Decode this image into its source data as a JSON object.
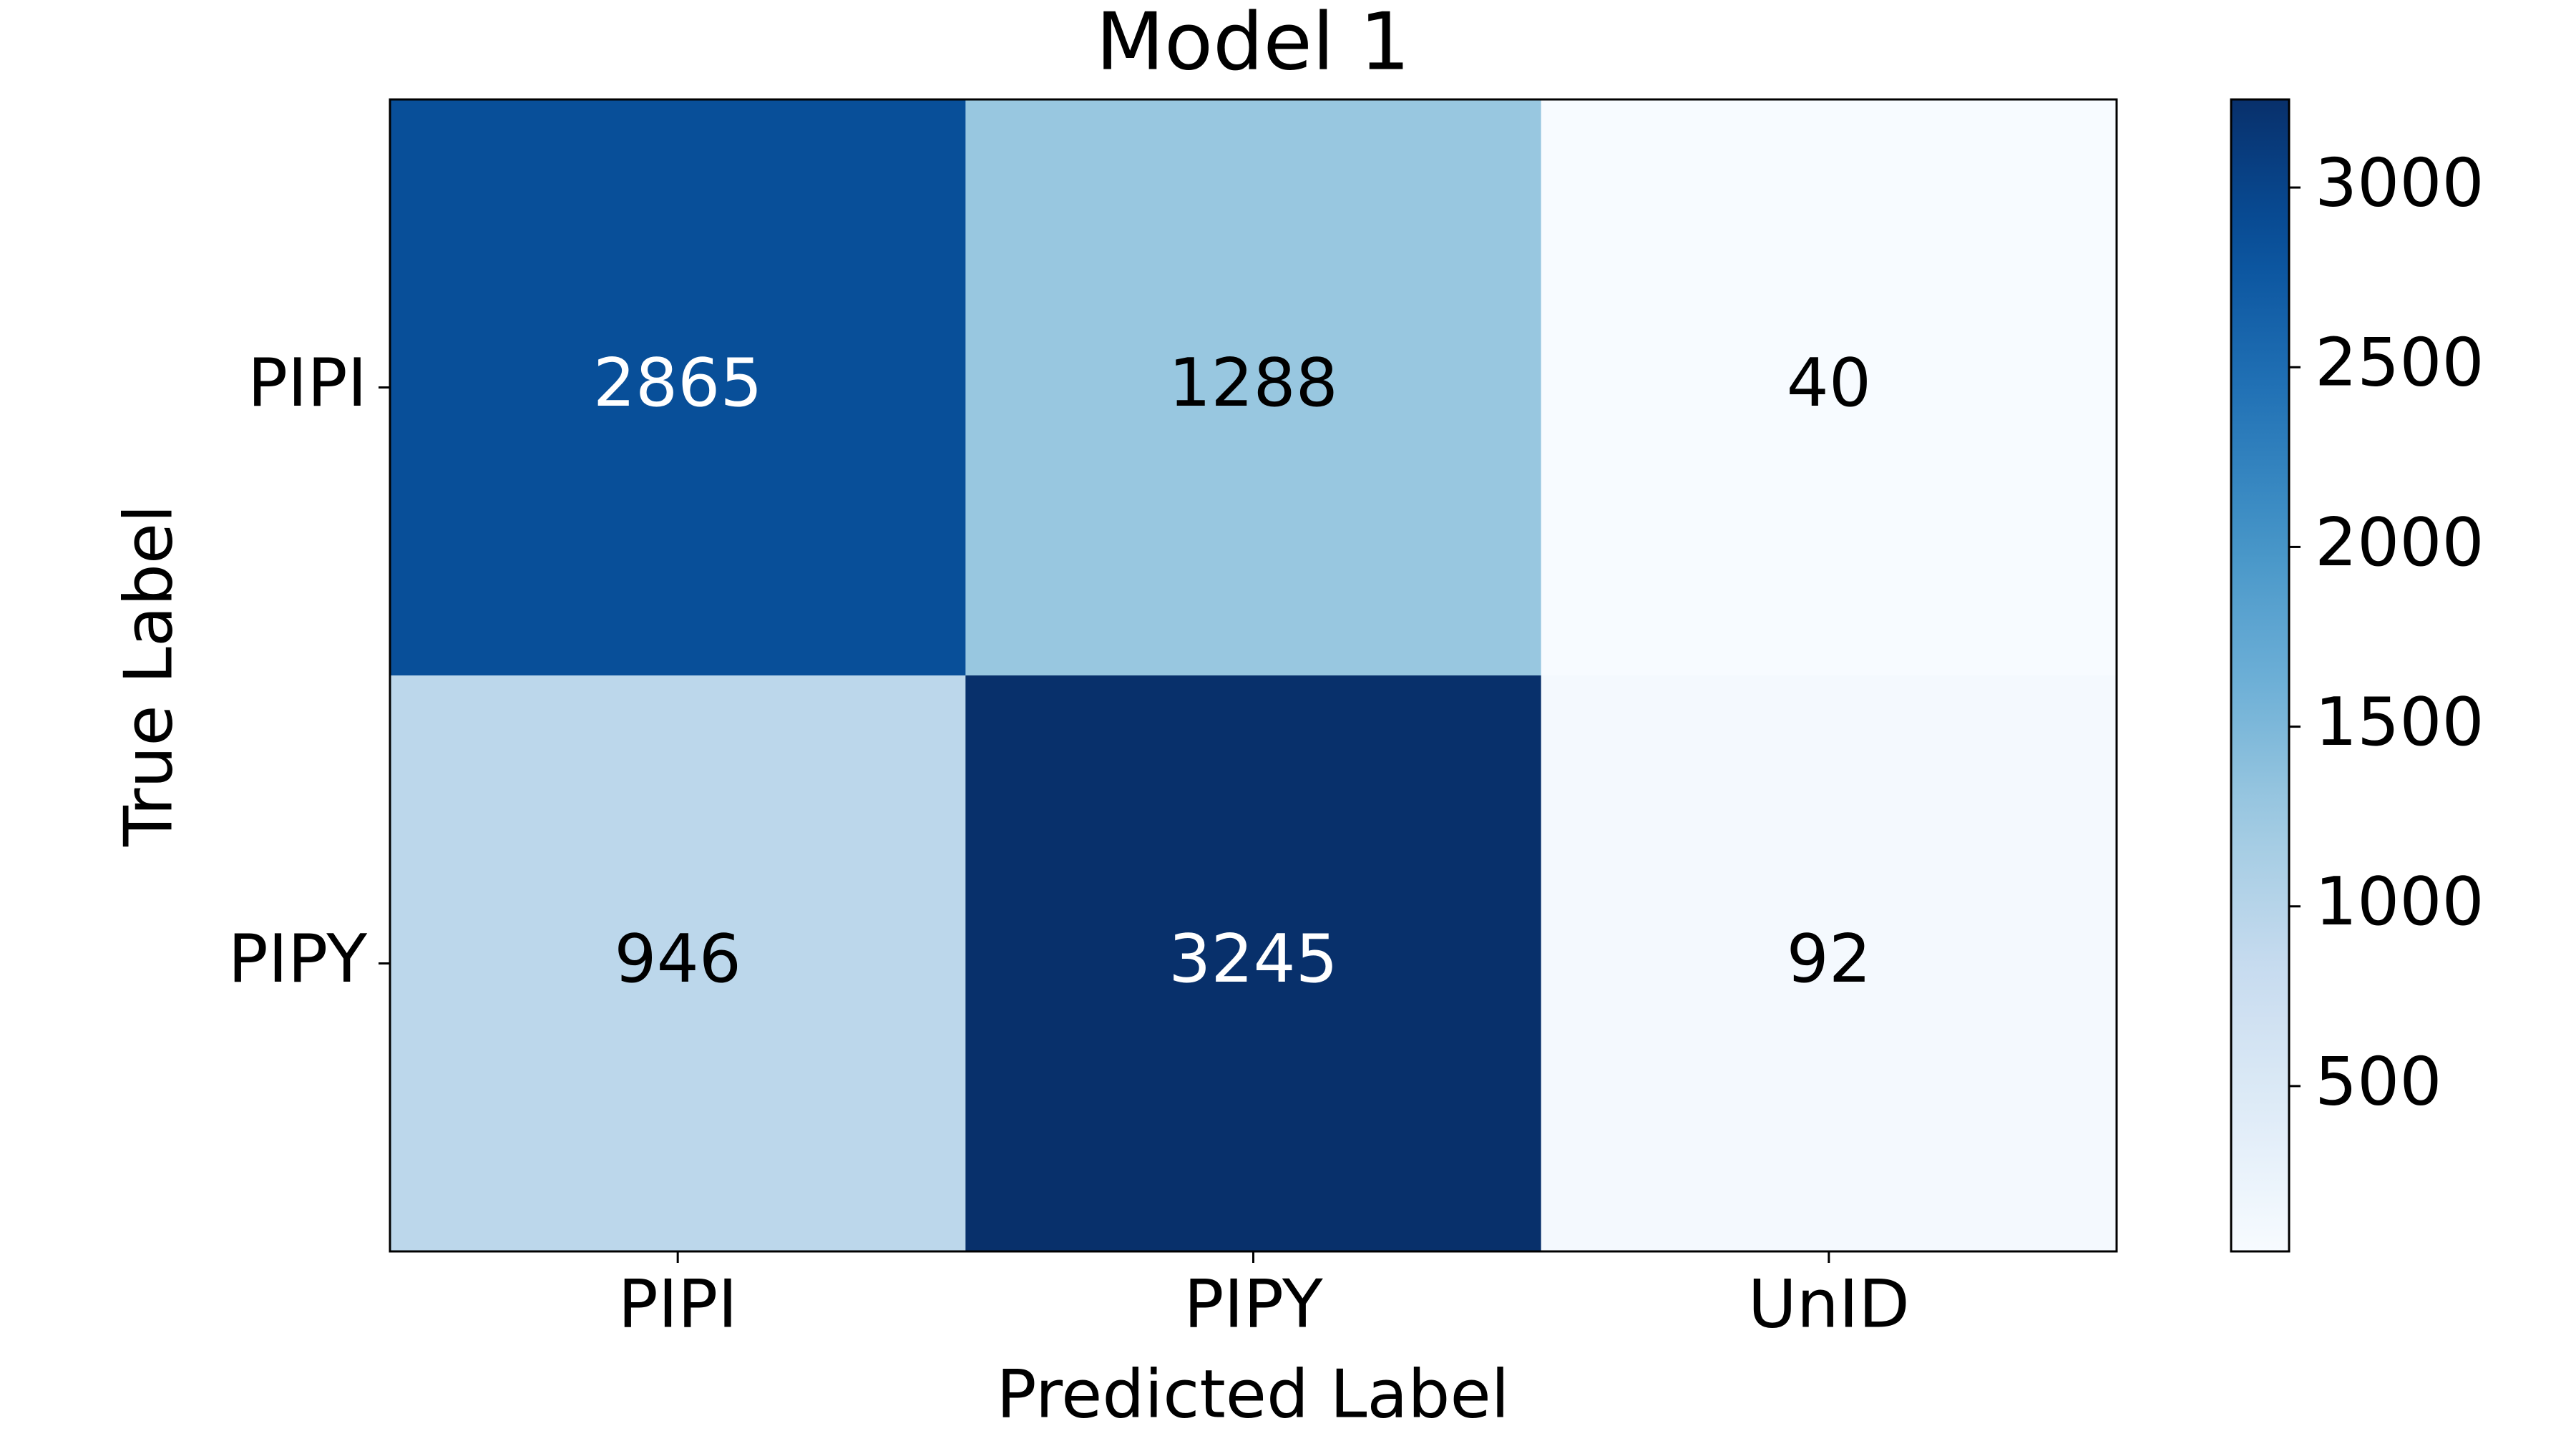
{
  "chart_data": {
    "type": "heatmap",
    "title": "Model 1",
    "xlabel": "Predicted Label",
    "ylabel": "True Label",
    "x_categories": [
      "PIPI",
      "PIPY",
      "UnID"
    ],
    "y_categories": [
      "PIPI",
      "PIPY"
    ],
    "values": [
      [
        2865,
        1288,
        40
      ],
      [
        946,
        3245,
        92
      ]
    ],
    "colormap": "Blues",
    "clim": [
      40,
      3245
    ],
    "cticks": [
      500,
      1000,
      1500,
      2000,
      2500,
      3000
    ]
  }
}
